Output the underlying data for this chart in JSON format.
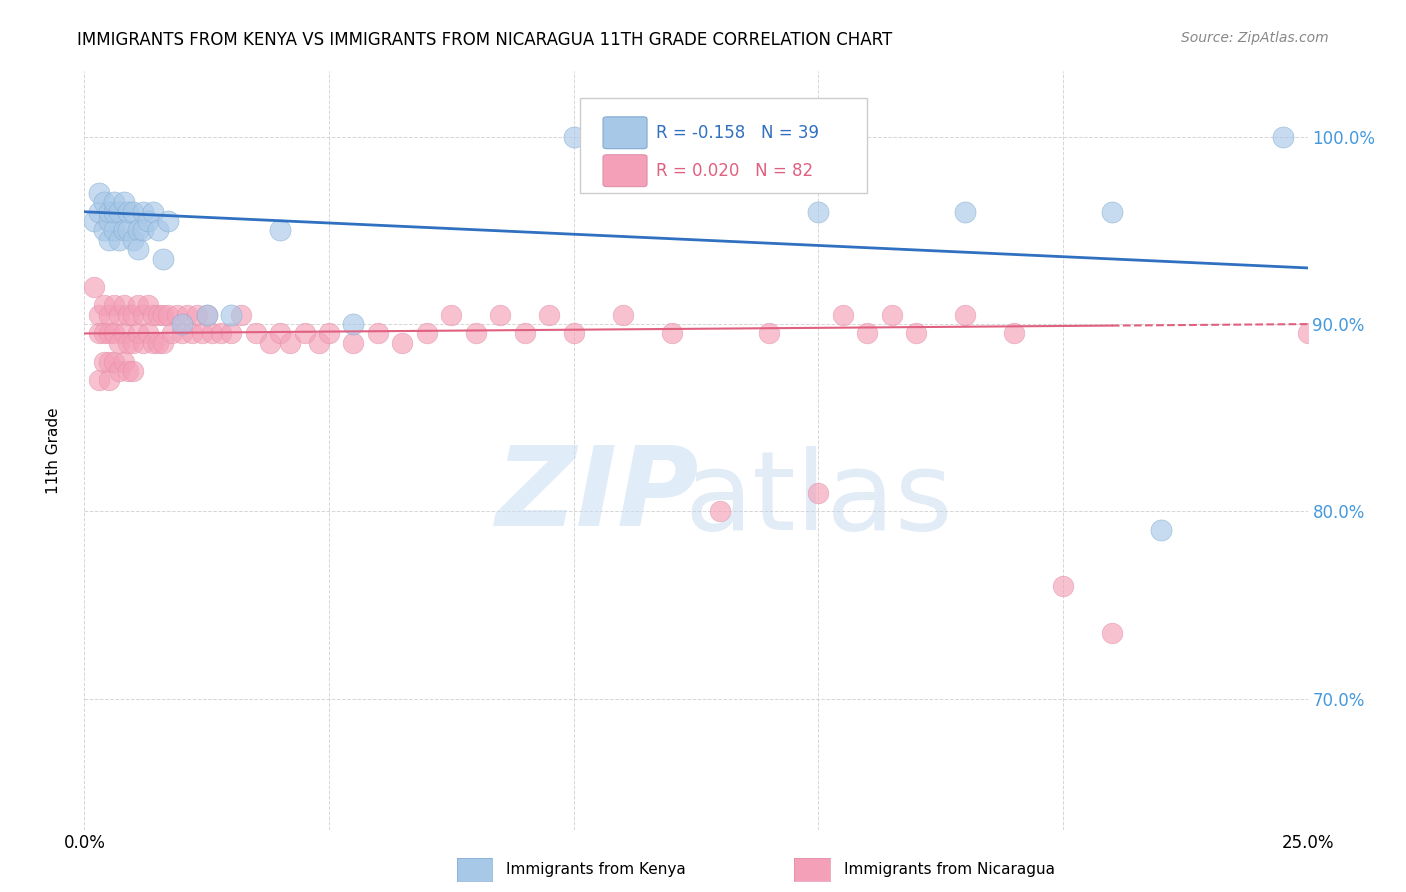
{
  "title": "IMMIGRANTS FROM KENYA VS IMMIGRANTS FROM NICARAGUA 11TH GRADE CORRELATION CHART",
  "source": "Source: ZipAtlas.com",
  "ylabel": "11th Grade",
  "xlim": [
    0.0,
    0.25
  ],
  "ylim": [
    0.63,
    1.035
  ],
  "yticks": [
    0.7,
    0.8,
    0.9,
    1.0
  ],
  "ytick_labels": [
    "70.0%",
    "80.0%",
    "90.0%",
    "100.0%"
  ],
  "kenya_color": "#a8c8e8",
  "nicaragua_color": "#f4a0b8",
  "kenya_line_color": "#3070c0",
  "nicaragua_line_color": "#e06080",
  "background_color": "#ffffff",
  "grid_color": "#cccccc",
  "kenya_x": [
    0.002,
    0.003,
    0.003,
    0.004,
    0.004,
    0.005,
    0.005,
    0.005,
    0.006,
    0.006,
    0.006,
    0.007,
    0.007,
    0.008,
    0.008,
    0.009,
    0.009,
    0.01,
    0.01,
    0.011,
    0.011,
    0.012,
    0.012,
    0.013,
    0.014,
    0.015,
    0.016,
    0.017,
    0.02,
    0.025,
    0.03,
    0.04,
    0.055,
    0.1,
    0.15,
    0.18,
    0.21,
    0.22,
    0.245
  ],
  "kenya_y": [
    0.955,
    0.96,
    0.97,
    0.95,
    0.965,
    0.945,
    0.955,
    0.96,
    0.95,
    0.96,
    0.965,
    0.945,
    0.96,
    0.95,
    0.965,
    0.95,
    0.96,
    0.945,
    0.96,
    0.95,
    0.94,
    0.96,
    0.95,
    0.955,
    0.96,
    0.95,
    0.935,
    0.955,
    0.9,
    0.905,
    0.905,
    0.95,
    0.9,
    1.0,
    0.96,
    0.96,
    0.96,
    0.79,
    1.0
  ],
  "nicaragua_x": [
    0.002,
    0.003,
    0.003,
    0.003,
    0.004,
    0.004,
    0.004,
    0.005,
    0.005,
    0.005,
    0.005,
    0.006,
    0.006,
    0.006,
    0.007,
    0.007,
    0.007,
    0.008,
    0.008,
    0.008,
    0.009,
    0.009,
    0.009,
    0.01,
    0.01,
    0.01,
    0.011,
    0.011,
    0.012,
    0.012,
    0.013,
    0.013,
    0.014,
    0.014,
    0.015,
    0.015,
    0.016,
    0.016,
    0.017,
    0.018,
    0.019,
    0.02,
    0.021,
    0.022,
    0.023,
    0.024,
    0.025,
    0.026,
    0.028,
    0.03,
    0.032,
    0.035,
    0.038,
    0.04,
    0.042,
    0.045,
    0.048,
    0.05,
    0.055,
    0.06,
    0.065,
    0.07,
    0.075,
    0.08,
    0.085,
    0.09,
    0.095,
    0.1,
    0.11,
    0.12,
    0.13,
    0.14,
    0.15,
    0.155,
    0.16,
    0.165,
    0.17,
    0.18,
    0.19,
    0.2,
    0.21,
    0.25
  ],
  "nicaragua_y": [
    0.92,
    0.905,
    0.895,
    0.87,
    0.91,
    0.895,
    0.88,
    0.905,
    0.895,
    0.88,
    0.87,
    0.91,
    0.895,
    0.88,
    0.905,
    0.89,
    0.875,
    0.91,
    0.895,
    0.88,
    0.905,
    0.89,
    0.875,
    0.905,
    0.89,
    0.875,
    0.91,
    0.895,
    0.905,
    0.89,
    0.91,
    0.895,
    0.905,
    0.89,
    0.905,
    0.89,
    0.905,
    0.89,
    0.905,
    0.895,
    0.905,
    0.895,
    0.905,
    0.895,
    0.905,
    0.895,
    0.905,
    0.895,
    0.895,
    0.895,
    0.905,
    0.895,
    0.89,
    0.895,
    0.89,
    0.895,
    0.89,
    0.895,
    0.89,
    0.895,
    0.89,
    0.895,
    0.905,
    0.895,
    0.905,
    0.895,
    0.905,
    0.895,
    0.905,
    0.895,
    0.8,
    0.895,
    0.81,
    0.905,
    0.895,
    0.905,
    0.895,
    0.905,
    0.895,
    0.76,
    0.735,
    0.895
  ],
  "kenya_line_x": [
    0.0,
    0.25
  ],
  "kenya_line_y": [
    0.96,
    0.93
  ],
  "nicaragua_line_x": [
    0.0,
    0.25
  ],
  "nicaragua_line_y": [
    0.895,
    0.9
  ]
}
